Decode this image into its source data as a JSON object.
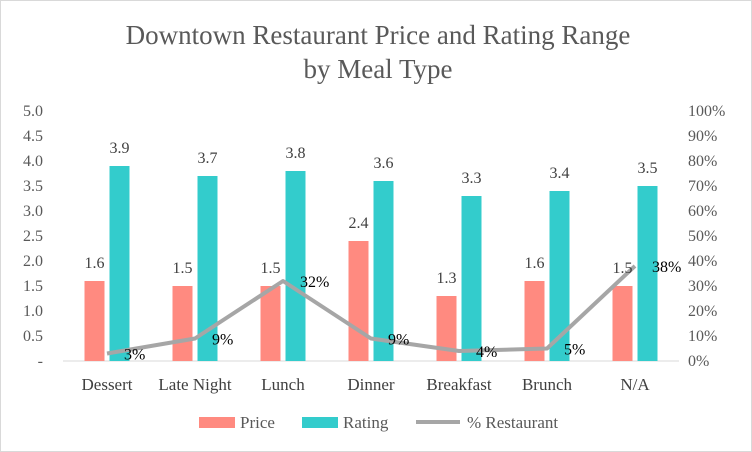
{
  "chart_data": {
    "type": "bar",
    "title": "Downtown Restaurant Price and Rating Range by Meal Type",
    "title_lines": [
      "Downtown Restaurant Price and Rating Range",
      "by Meal Type"
    ],
    "categories": [
      "Dessert",
      "Late Night",
      "Lunch",
      "Dinner",
      "Breakfast",
      "Brunch",
      "N/A"
    ],
    "series": [
      {
        "name": "Price",
        "kind": "bar",
        "color": "#ff8a80",
        "axis": "left",
        "values": [
          1.6,
          1.5,
          1.5,
          2.4,
          1.3,
          1.6,
          1.5
        ],
        "labels": [
          "1.6",
          "1.5",
          "1.5",
          "2.4",
          "1.3",
          "1.6",
          "1.5"
        ]
      },
      {
        "name": "Rating",
        "kind": "bar",
        "color": "#33cccc",
        "axis": "left",
        "values": [
          3.9,
          3.7,
          3.8,
          3.6,
          3.3,
          3.4,
          3.5
        ],
        "labels": [
          "3.9",
          "3.7",
          "3.8",
          "3.6",
          "3.3",
          "3.4",
          "3.5"
        ]
      },
      {
        "name": "% Restaurant",
        "kind": "line",
        "color": "#a6a6a6",
        "axis": "right",
        "values": [
          3,
          9,
          32,
          9,
          4,
          5,
          38
        ],
        "labels": [
          "3%",
          "9%",
          "32%",
          "9%",
          "4%",
          "5%",
          "38%"
        ]
      }
    ],
    "y_left": {
      "range": [
        0,
        5
      ],
      "tick_values": [
        0,
        0.5,
        1,
        1.5,
        2,
        2.5,
        3,
        3.5,
        4,
        4.5,
        5
      ],
      "tick_labels": [
        "-",
        "0.5",
        "1.0",
        "1.5",
        "2.0",
        "2.5",
        "3.0",
        "3.5",
        "4.0",
        "4.5",
        "5.0"
      ]
    },
    "y_right": {
      "range": [
        0,
        100
      ],
      "tick_values": [
        0,
        10,
        20,
        30,
        40,
        50,
        60,
        70,
        80,
        90,
        100
      ],
      "tick_labels": [
        "0%",
        "10%",
        "20%",
        "30%",
        "40%",
        "50%",
        "60%",
        "70%",
        "80%",
        "90%",
        "100%"
      ]
    },
    "grid": false,
    "legend_position": "bottom"
  }
}
